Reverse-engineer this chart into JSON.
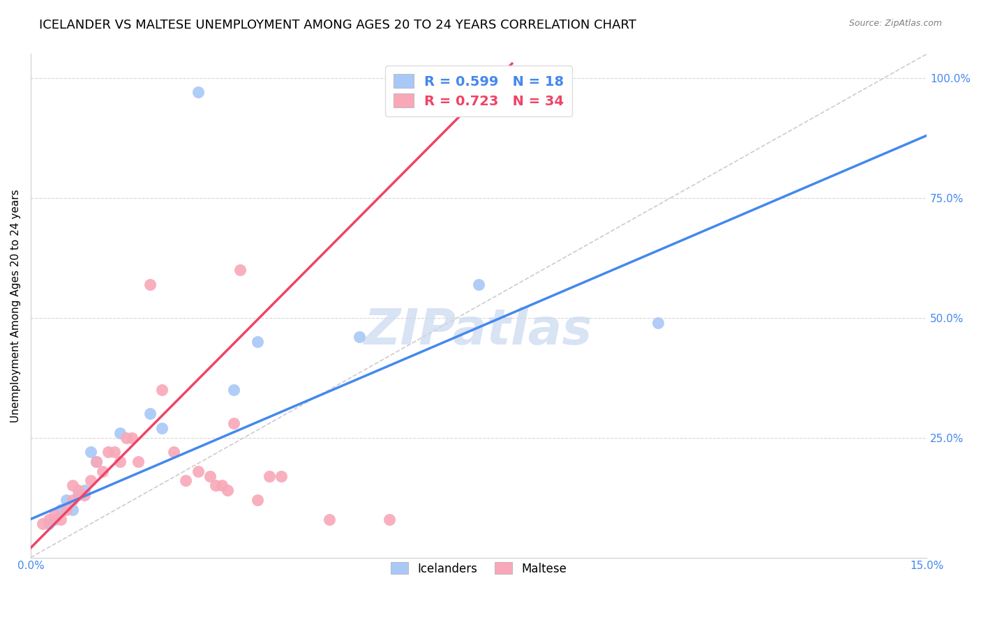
{
  "title": "ICELANDER VS MALTESE UNEMPLOYMENT AMONG AGES 20 TO 24 YEARS CORRELATION CHART",
  "source": "Source: ZipAtlas.com",
  "ylabel": "Unemployment Among Ages 20 to 24 years",
  "xlim": [
    0.0,
    0.15
  ],
  "ylim": [
    0.0,
    1.05
  ],
  "xtick_labels": [
    "0.0%",
    "15.0%"
  ],
  "ytick_labels": [
    "100.0%",
    "75.0%",
    "50.0%",
    "25.0%"
  ],
  "ytick_positions": [
    1.0,
    0.75,
    0.5,
    0.25
  ],
  "xtick_positions": [
    0.0,
    0.15
  ],
  "iceland_color": "#a8c8f8",
  "maltese_color": "#f8a8b8",
  "trendline_iceland_color": "#4488ee",
  "trendline_maltese_color": "#ee4466",
  "diagonal_color": "#cccccc",
  "watermark": "ZIPatlas",
  "watermark_color": "#c8d8f0",
  "iceland_points_x": [
    0.003,
    0.004,
    0.005,
    0.006,
    0.007,
    0.008,
    0.009,
    0.01,
    0.011,
    0.015,
    0.02,
    0.022,
    0.028,
    0.034,
    0.038,
    0.055,
    0.075,
    0.105
  ],
  "iceland_points_y": [
    0.07,
    0.08,
    0.1,
    0.12,
    0.1,
    0.13,
    0.14,
    0.22,
    0.2,
    0.26,
    0.3,
    0.27,
    0.97,
    0.35,
    0.45,
    0.46,
    0.57,
    0.49
  ],
  "maltese_points_x": [
    0.002,
    0.003,
    0.004,
    0.005,
    0.006,
    0.007,
    0.007,
    0.008,
    0.009,
    0.01,
    0.011,
    0.012,
    0.013,
    0.014,
    0.015,
    0.016,
    0.017,
    0.018,
    0.02,
    0.022,
    0.024,
    0.026,
    0.028,
    0.03,
    0.031,
    0.032,
    0.033,
    0.034,
    0.035,
    0.038,
    0.04,
    0.042,
    0.05,
    0.06
  ],
  "maltese_points_y": [
    0.07,
    0.08,
    0.09,
    0.08,
    0.1,
    0.12,
    0.15,
    0.14,
    0.13,
    0.16,
    0.2,
    0.18,
    0.22,
    0.22,
    0.2,
    0.25,
    0.25,
    0.2,
    0.57,
    0.35,
    0.22,
    0.16,
    0.18,
    0.17,
    0.15,
    0.15,
    0.14,
    0.28,
    0.6,
    0.12,
    0.17,
    0.17,
    0.08,
    0.08
  ],
  "background_color": "#ffffff",
  "tick_label_color": "#4488ee",
  "title_fontsize": 13,
  "axis_label_fontsize": 11,
  "tick_fontsize": 11,
  "iceland_trendline_x": [
    0.0,
    0.15
  ],
  "iceland_trendline_y": [
    0.08,
    0.88
  ],
  "maltese_trendline_x": [
    0.0,
    0.07
  ],
  "maltese_trendline_y": [
    0.0,
    0.85
  ]
}
